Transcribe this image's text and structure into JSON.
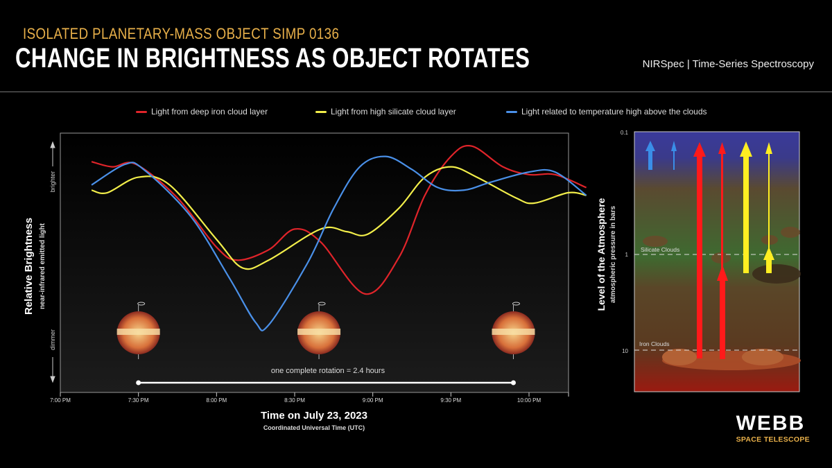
{
  "header": {
    "subtitle": "ISOLATED PLANETARY-MASS OBJECT SIMP 0136",
    "title": "CHANGE IN BRIGHTNESS AS OBJECT ROTATES",
    "instrument": "NIRSpec | Time-Series Spectroscopy"
  },
  "logo": {
    "name": "WEBB",
    "tagline": "SPACE TELESCOPE"
  },
  "chart_data": [
    {
      "type": "line",
      "xlabel": "Time on July 23, 2023",
      "xlabel_sub": "Coordinated Universal Time (UTC)",
      "ylabel": "Relative Brightness",
      "ylabel_sub": "near-infrared emitted light",
      "y_top_label": "brighter",
      "y_bottom_label": "dimmer",
      "x_ticks": [
        "7:00 PM",
        "7:30 PM",
        "8:00 PM",
        "8:30 PM",
        "9:00 PM",
        "9:30 PM",
        "10:00 PM"
      ],
      "xlim": [
        "7:00 PM",
        "10:15 PM"
      ],
      "ylim": [
        0,
        100
      ],
      "legend": "top",
      "annotation": "one complete rotation = 2.4 hours",
      "rotation_span": [
        "7:30 PM",
        "9:54 PM"
      ],
      "series": [
        {
          "name": "Light from deep iron cloud layer",
          "color": "#e0242a",
          "points": [
            [
              "7:12 PM",
              89
            ],
            [
              "7:20 PM",
              87
            ],
            [
              "7:29 PM",
              88
            ],
            [
              "7:45 PM",
              75
            ],
            [
              "8:00 PM",
              56
            ],
            [
              "8:08 PM",
              51
            ],
            [
              "8:20 PM",
              55
            ],
            [
              "8:30 PM",
              63
            ],
            [
              "8:40 PM",
              58
            ],
            [
              "8:57 PM",
              38
            ],
            [
              "9:10 PM",
              52
            ],
            [
              "9:20 PM",
              76
            ],
            [
              "9:30 PM",
              91
            ],
            [
              "9:38 PM",
              95
            ],
            [
              "9:50 PM",
              87
            ],
            [
              "10:00 PM",
              84
            ],
            [
              "10:10 PM",
              84
            ],
            [
              "10:22 PM",
              79
            ]
          ]
        },
        {
          "name": "Light from high silicate cloud layer",
          "color": "#f2ee4a",
          "points": [
            [
              "7:12 PM",
              78
            ],
            [
              "7:18 PM",
              77
            ],
            [
              "7:30 PM",
              83
            ],
            [
              "7:42 PM",
              80
            ],
            [
              "8:00 PM",
              59
            ],
            [
              "8:10 PM",
              48
            ],
            [
              "8:20 PM",
              51
            ],
            [
              "8:40 PM",
              63
            ],
            [
              "8:50 PM",
              62
            ],
            [
              "8:58 PM",
              61
            ],
            [
              "9:10 PM",
              71
            ],
            [
              "9:20 PM",
              83
            ],
            [
              "9:30 PM",
              87
            ],
            [
              "9:40 PM",
              83
            ],
            [
              "9:55 PM",
              75
            ],
            [
              "10:02 PM",
              73
            ],
            [
              "10:15 PM",
              77
            ],
            [
              "10:22 PM",
              76
            ]
          ]
        },
        {
          "name": "Light related to temperature high above the clouds",
          "color": "#4a90e8",
          "points": [
            [
              "7:12 PM",
              80
            ],
            [
              "7:25 PM",
              88
            ],
            [
              "7:32 PM",
              86
            ],
            [
              "7:50 PM",
              68
            ],
            [
              "8:05 PM",
              44
            ],
            [
              "8:15 PM",
              27
            ],
            [
              "8:20 PM",
              26
            ],
            [
              "8:35 PM",
              50
            ],
            [
              "8:45 PM",
              71
            ],
            [
              "8:55 PM",
              87
            ],
            [
              "9:05 PM",
              91
            ],
            [
              "9:15 PM",
              86
            ],
            [
              "9:25 PM",
              79
            ],
            [
              "9:35 PM",
              78
            ],
            [
              "9:45 PM",
              81
            ],
            [
              "10:00 PM",
              85
            ],
            [
              "10:10 PM",
              85
            ],
            [
              "10:22 PM",
              76
            ]
          ]
        }
      ]
    },
    {
      "type": "diagram",
      "ylabel": "Level of the Atmosphere",
      "ylabel_sub": "atmospheric pressure in bars",
      "y_ticks": [
        "0.1",
        "1",
        "10"
      ],
      "y_scale": "log",
      "layers": [
        {
          "label": "Silicate Clouds",
          "pressure": 1
        },
        {
          "label": "Iron Clouds",
          "pressure": 10
        }
      ],
      "arrow_colors": [
        "#3a8ee8",
        "#ff1a1a",
        "#ffee22"
      ]
    }
  ]
}
